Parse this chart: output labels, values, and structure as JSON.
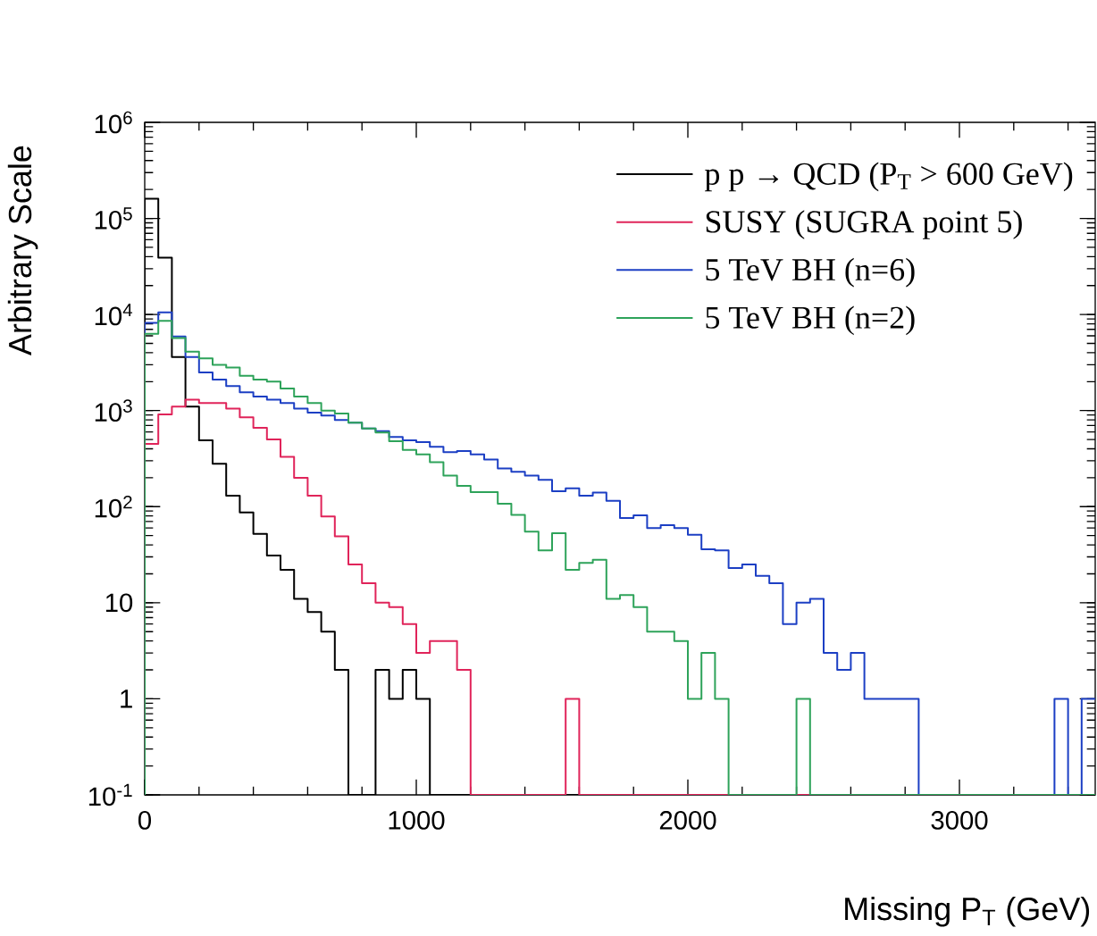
{
  "chart_data": {
    "type": "histogram",
    "xlabel": "Missing P$_{T}$ (GeV)",
    "ylabel": "Arbitrary Scale",
    "bins": [
      0,
      50,
      100,
      150,
      200,
      250,
      300,
      350,
      400,
      450,
      500,
      550,
      600,
      650,
      700,
      750,
      800,
      850,
      900,
      950,
      1000,
      1050,
      1100,
      1150,
      1200,
      1250,
      1300,
      1350,
      1400,
      1450,
      1500,
      1550,
      1600,
      1650,
      1700,
      1750,
      1800,
      1850,
      1900,
      1950,
      2000,
      2050,
      2100,
      2150,
      2200,
      2250,
      2300,
      2350,
      2400,
      2450,
      2500,
      2550,
      2600,
      2650,
      2700,
      2750,
      2800,
      2850,
      2900,
      2950,
      3000,
      3050,
      3100,
      3150,
      3200,
      3250,
      3300,
      3350,
      3400,
      3450,
      3500
    ],
    "series": [
      {
        "name": "p p → QCD (P$_{T}$ > 600 GeV)",
        "color": "#000000",
        "values": [
          160000,
          39000,
          3600,
          1100,
          490,
          280,
          130,
          87,
          52,
          31,
          22,
          11,
          8,
          5,
          2,
          0.1,
          0.1,
          2,
          1,
          2,
          1,
          0.1,
          0.1,
          0.1,
          0.1,
          0.1,
          0.1,
          0.1,
          0.1,
          0.1,
          0.1,
          0.1,
          0.1,
          0.1,
          0.1,
          0.1,
          0.1,
          0.1,
          0.1,
          0.1,
          0.1,
          0.1,
          0.1,
          0.1,
          0.1,
          0.1,
          0.1,
          0.1,
          0.1,
          0.1,
          0.1,
          0.1,
          0.1,
          0.1,
          0.1,
          0.1,
          0.1,
          0.1,
          0.1,
          0.1,
          0.1,
          0.1,
          0.1,
          0.1,
          0.1,
          0.1,
          0.1,
          0.1,
          0.1,
          0.1
        ]
      },
      {
        "name": "SUSY (SUGRA point 5)",
        "color": "#e0245a",
        "values": [
          450,
          910,
          1100,
          1300,
          1200,
          1200,
          1050,
          850,
          660,
          500,
          330,
          200,
          130,
          79,
          49,
          25,
          16,
          10,
          9,
          6,
          3,
          4,
          4,
          2,
          0.1,
          0.1,
          0.1,
          0.1,
          0.1,
          0.1,
          0.1,
          1,
          0.1,
          0.1,
          0.1,
          0.1,
          0.1,
          0.1,
          0.1,
          0.1,
          0.1,
          0.1,
          0.1,
          0.1,
          0.1,
          0.1,
          0.1,
          0.1,
          0.1,
          0.1,
          0.1,
          0.1,
          0.1,
          0.1,
          0.1,
          0.1,
          0.1,
          0.1,
          0.1,
          0.1,
          0.1,
          0.1,
          0.1,
          0.1,
          0.1,
          0.1,
          0.1,
          0.1,
          0.1,
          0.1
        ]
      },
      {
        "name": "5 TeV BH (n=6)",
        "color": "#1c3fc4",
        "values": [
          8200,
          10500,
          5900,
          3600,
          2500,
          2100,
          1800,
          1550,
          1400,
          1300,
          1200,
          1050,
          950,
          890,
          800,
          750,
          650,
          610,
          530,
          490,
          470,
          420,
          370,
          380,
          350,
          310,
          250,
          230,
          210,
          190,
          145,
          155,
          130,
          140,
          115,
          76,
          81,
          60,
          64,
          60,
          51,
          36,
          35,
          23,
          25,
          19,
          16,
          6,
          10,
          11,
          3,
          2,
          3,
          1,
          1,
          1,
          1,
          0.1,
          0.1,
          0.1,
          0.1,
          0.1,
          0.1,
          0.1,
          0.1,
          0.1,
          0.1,
          1,
          0.1,
          1
        ]
      },
      {
        "name": "5 TeV BH (n=2)",
        "color": "#2ea35a",
        "values": [
          6300,
          8600,
          5700,
          4100,
          3500,
          3000,
          2800,
          2300,
          2100,
          2000,
          1700,
          1400,
          1200,
          1000,
          930,
          750,
          650,
          590,
          480,
          390,
          350,
          290,
          210,
          165,
          142,
          142,
          107,
          82,
          55,
          35,
          53,
          22,
          26,
          28,
          11,
          12,
          9,
          5,
          5,
          4,
          1,
          3,
          1,
          0.1,
          0.1,
          0.1,
          0.1,
          0.1,
          1,
          0.1,
          0.1,
          0.1,
          0.1,
          0.1,
          0.1,
          0.1,
          0.1,
          0.1,
          0.1,
          0.1,
          0.1,
          0.1,
          0.1,
          0.1,
          0.1,
          0.1,
          0.1,
          0.1,
          0.1,
          0.1
        ]
      }
    ],
    "xlim": [
      0,
      3500
    ],
    "xticks": [
      0,
      {
        "value": 200,
        "label": null
      },
      {
        "value": 400,
        "label": null
      },
      {
        "value": 600,
        "label": null
      },
      {
        "value": 800,
        "label": null
      },
      1000,
      {
        "value": 1200,
        "label": null
      },
      {
        "value": 1400,
        "label": null
      },
      {
        "value": 1600,
        "label": null
      },
      {
        "value": 1800,
        "label": null
      },
      2000,
      {
        "value": 2200,
        "label": null
      },
      {
        "value": 2400,
        "label": null
      },
      {
        "value": 2600,
        "label": null
      },
      {
        "value": 2800,
        "label": null
      },
      3000,
      {
        "value": 3200,
        "label": null
      },
      {
        "value": 3400,
        "label": null
      }
    ],
    "ylim": [
      0.1,
      1000000
    ],
    "yticks": [
      {
        "value": 0.1,
        "label": "10$^{-1}$"
      },
      1,
      10,
      {
        "value": 100,
        "label": "10$^{2}$"
      },
      {
        "value": 1000,
        "label": "10$^{3}$"
      },
      {
        "value": 10000,
        "label": "10$^{4}$"
      },
      {
        "value": 100000,
        "label": "10$^{5}$"
      },
      {
        "value": 1000000,
        "label": "10$^{6}$"
      }
    ],
    "log": "y",
    "grid": false,
    "legend": "top right"
  }
}
